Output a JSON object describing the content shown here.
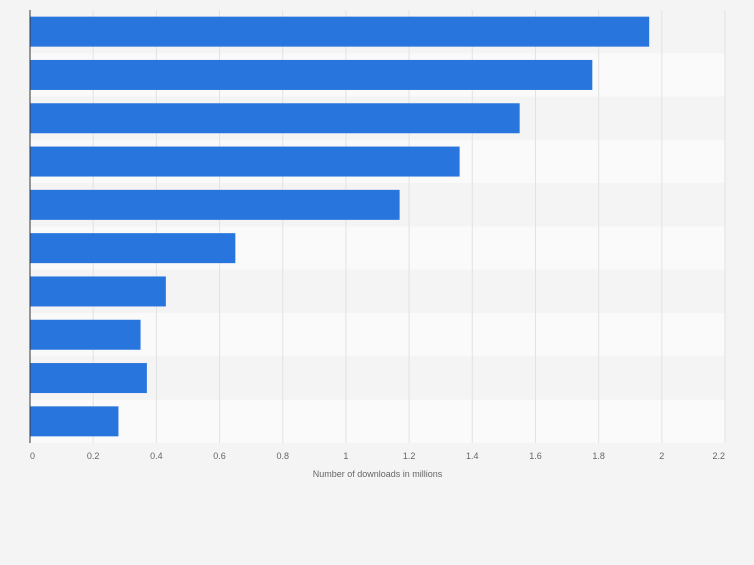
{
  "chart_data": {
    "type": "bar",
    "orientation": "horizontal",
    "title": "",
    "categories": [
      "",
      "",
      "",
      "",
      "",
      "",
      "",
      "",
      "",
      ""
    ],
    "values": [
      1.96,
      1.78,
      1.55,
      1.36,
      1.17,
      0.65,
      0.43,
      0.35,
      0.37,
      0.28
    ],
    "xlabel": "Number of downloads in millions",
    "ylabel": "",
    "xlim": [
      0,
      2.2
    ],
    "ticks": [
      "0",
      "0.2",
      "0.4",
      "0.6",
      "0.8",
      "1",
      "1.2",
      "1.4",
      "1.6",
      "1.8",
      "2",
      "2.2"
    ],
    "grid": true,
    "bar_color": "#2876dd"
  }
}
